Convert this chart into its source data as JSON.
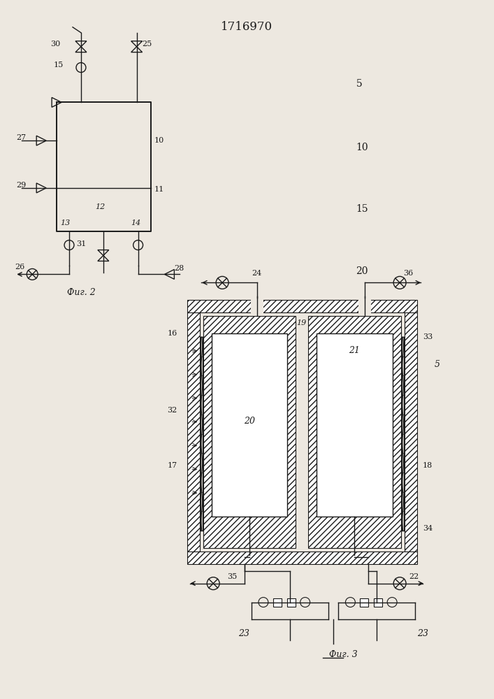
{
  "title": "1716970",
  "bg_color": "#ede8e0",
  "line_color": "#1a1a1a",
  "fig2_label": "Фиг. 2",
  "fig3_label": "Фиг. 3"
}
